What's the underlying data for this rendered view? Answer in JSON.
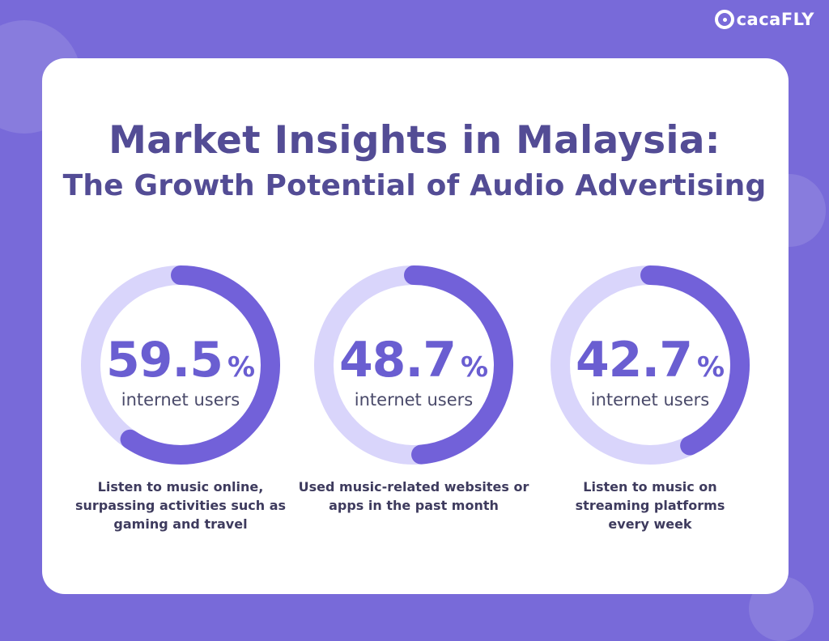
{
  "brand": {
    "logo_text": "cacaFLY"
  },
  "title": {
    "line1": "Market Insights in Malaysia:",
    "line2": "The Growth Potential of Audio Advertising"
  },
  "colors": {
    "background": "#786ad9",
    "ring_track": "#d9d5fb",
    "ring_fill": "#7261d9",
    "title": "#534c95",
    "value": "#6a5ed1"
  },
  "chart_data": {
    "type": "donut",
    "unit_symbol": "%",
    "unit_label": "internet users",
    "items": [
      {
        "value": 59.5,
        "value_text": "59.5",
        "description": "Listen to music online, surpassing activities such as gaming and travel"
      },
      {
        "value": 48.7,
        "value_text": "48.7",
        "description": "Used music-related websites or apps in the past month"
      },
      {
        "value": 42.7,
        "value_text": "42.7",
        "description": "Listen to music on streaming platforms every week"
      }
    ]
  }
}
